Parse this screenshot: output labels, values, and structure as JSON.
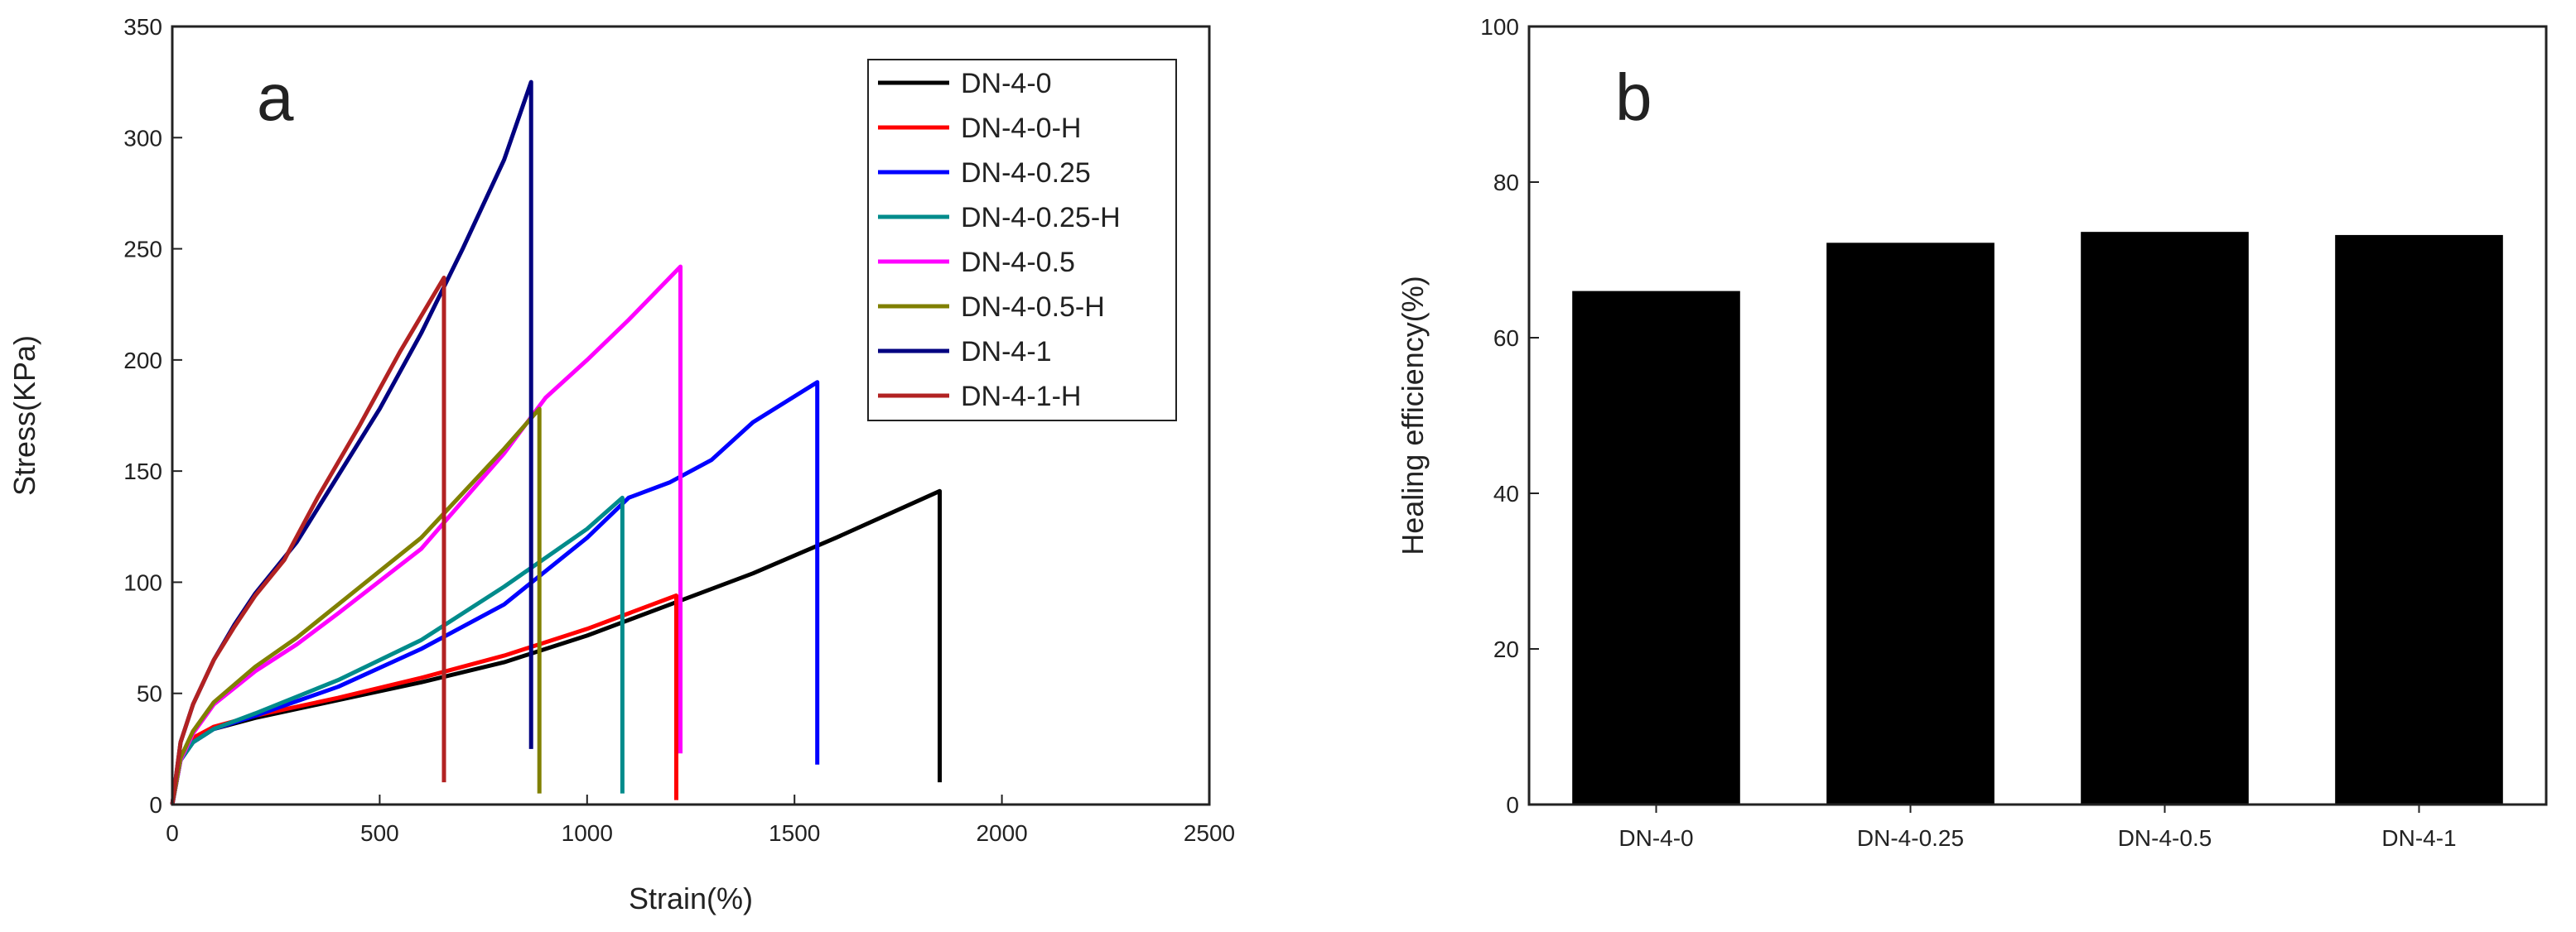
{
  "chart_data": [
    {
      "panel": "a",
      "type": "line",
      "xlabel": "Strain(%)",
      "ylabel": "Stress(KPa)",
      "xlim": [
        0,
        2500
      ],
      "ylim": [
        0,
        350
      ],
      "xticks": [
        0,
        500,
        1000,
        1500,
        2000,
        2500
      ],
      "yticks": [
        0,
        50,
        100,
        150,
        200,
        250,
        300,
        350
      ],
      "xtick_labels": [
        "0",
        "500",
        "1000",
        "1500",
        "2000",
        "2500"
      ],
      "ytick_labels": [
        "0",
        "50",
        "100",
        "150",
        "200",
        "250",
        "300",
        "350"
      ],
      "legend_position": "top-right",
      "series": [
        {
          "name": "DN-4-0",
          "color": "#000000",
          "x": [
            0,
            20,
            50,
            100,
            200,
            400,
            600,
            800,
            1000,
            1200,
            1400,
            1600,
            1850,
            1850,
            1850
          ],
          "y": [
            0,
            20,
            28,
            34,
            39,
            47,
            55,
            64,
            76,
            90,
            104,
            120,
            141,
            110,
            10
          ]
        },
        {
          "name": "DN-4-0-H",
          "color": "#ff0000",
          "x": [
            0,
            20,
            50,
            100,
            200,
            400,
            600,
            800,
            1000,
            1215,
            1215
          ],
          "y": [
            0,
            22,
            30,
            35,
            40,
            48,
            57,
            67,
            79,
            94,
            2
          ]
        },
        {
          "name": "DN-4-0.25",
          "color": "#0000ff",
          "x": [
            0,
            20,
            50,
            100,
            200,
            400,
            600,
            800,
            1000,
            1100,
            1200,
            1300,
            1400,
            1555,
            1555
          ],
          "y": [
            0,
            20,
            28,
            34,
            40,
            53,
            70,
            90,
            120,
            138,
            145,
            155,
            172,
            190,
            18
          ]
        },
        {
          "name": "DN-4-0.25-H",
          "color": "#008b8b",
          "x": [
            0,
            20,
            50,
            100,
            200,
            400,
            600,
            800,
            1000,
            1085,
            1085
          ],
          "y": [
            0,
            20,
            28,
            34,
            41,
            56,
            74,
            98,
            124,
            138,
            5
          ]
        },
        {
          "name": "DN-4-0.5",
          "color": "#ff00ff",
          "x": [
            0,
            20,
            50,
            100,
            200,
            300,
            400,
            600,
            800,
            900,
            1000,
            1100,
            1225,
            1225
          ],
          "y": [
            0,
            20,
            32,
            45,
            60,
            72,
            86,
            115,
            158,
            183,
            200,
            218,
            242,
            23
          ]
        },
        {
          "name": "DN-4-0.5-H",
          "color": "#808000",
          "x": [
            0,
            20,
            50,
            100,
            200,
            300,
            400,
            600,
            800,
            885,
            885
          ],
          "y": [
            0,
            21,
            33,
            46,
            62,
            75,
            90,
            120,
            160,
            178,
            5
          ]
        },
        {
          "name": "DN-4-1",
          "color": "#000080",
          "x": [
            0,
            20,
            50,
            100,
            150,
            200,
            300,
            400,
            500,
            600,
            700,
            800,
            865,
            865
          ],
          "y": [
            0,
            28,
            45,
            65,
            81,
            95,
            118,
            148,
            178,
            212,
            250,
            290,
            325,
            25
          ]
        },
        {
          "name": "DN-4-1-H",
          "color": "#b22222",
          "x": [
            0,
            20,
            50,
            100,
            150,
            200,
            270,
            350,
            450,
            550,
            655,
            655
          ],
          "y": [
            0,
            28,
            45,
            65,
            80,
            94,
            110,
            138,
            170,
            204,
            237,
            10
          ]
        }
      ]
    },
    {
      "panel": "b",
      "type": "bar",
      "xlabel": "",
      "ylabel": "Healing efficiency(%)",
      "ylim": [
        0,
        100
      ],
      "yticks": [
        0,
        20,
        40,
        60,
        80,
        100
      ],
      "ytick_labels": [
        "0",
        "20",
        "40",
        "60",
        "80",
        "100"
      ],
      "categories": [
        "DN-4-0",
        "DN-4-0.25",
        "DN-4-0.5",
        "DN-4-1"
      ],
      "values": [
        66,
        72.2,
        73.6,
        73.2
      ],
      "bar_color": "#000000"
    }
  ]
}
